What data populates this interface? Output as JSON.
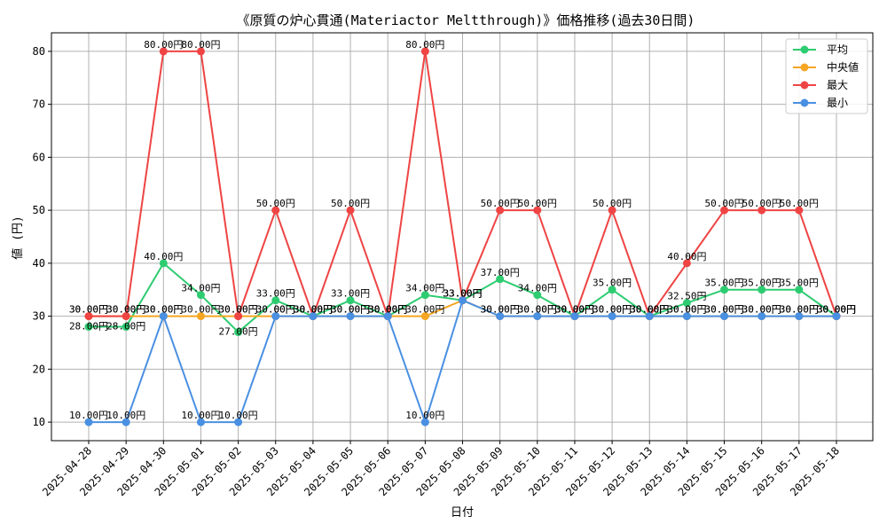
{
  "chart_data": {
    "type": "line",
    "title": "《原質の炉心貫通(Materiactor Meltthrough)》価格推移(過去30日間)",
    "xlabel": "日付",
    "ylabel": "値 (円)",
    "ylim": [
      6.5,
      83.5
    ],
    "yticks": [
      10,
      20,
      30,
      40,
      50,
      60,
      70,
      80
    ],
    "grid": true,
    "legend_position": "top-right",
    "value_suffix": "円",
    "categories": [
      "2025-04-28",
      "2025-04-29",
      "2025-04-30",
      "2025-05-01",
      "2025-05-02",
      "2025-05-03",
      "2025-05-04",
      "2025-05-05",
      "2025-05-06",
      "2025-05-07",
      "2025-05-08",
      "2025-05-09",
      "2025-05-10",
      "2025-05-11",
      "2025-05-12",
      "2025-05-13",
      "2025-05-14",
      "2025-05-15",
      "2025-05-16",
      "2025-05-17",
      "2025-05-18"
    ],
    "series": [
      {
        "name": "平均",
        "color": "#2ecc71",
        "label_offset": "below-first",
        "values": [
          28,
          28,
          40,
          34,
          27,
          33,
          30,
          33,
          30,
          34,
          33,
          37,
          34,
          30,
          35,
          30,
          32.5,
          35,
          35,
          35,
          30
        ]
      },
      {
        "name": "中央値",
        "color": "#f5a623",
        "values": [
          30,
          30,
          30,
          30,
          30,
          30,
          30,
          30,
          30,
          30,
          33,
          30,
          30,
          30,
          30,
          30,
          30,
          30,
          30,
          30,
          30
        ]
      },
      {
        "name": "最大",
        "color": "#ef4444",
        "values": [
          30,
          30,
          80,
          80,
          30,
          50,
          30,
          50,
          30,
          80,
          33,
          50,
          50,
          30,
          50,
          30,
          40,
          50,
          50,
          50,
          30
        ]
      },
      {
        "name": "最小",
        "color": "#4a90e2",
        "values": [
          10,
          10,
          30,
          10,
          10,
          30,
          30,
          30,
          30,
          10,
          33,
          30,
          30,
          30,
          30,
          30,
          30,
          30,
          30,
          30,
          30
        ]
      }
    ]
  }
}
